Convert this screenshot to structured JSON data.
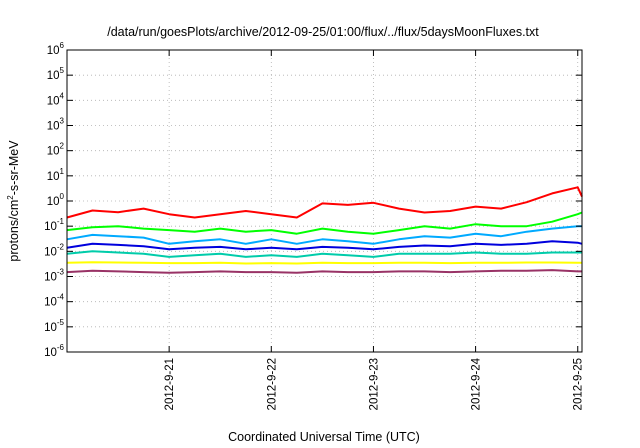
{
  "chart_data": {
    "type": "line",
    "title": "/data/run/goesPlots/archive/2012-09-25/01:00/flux/../flux/5daysMoonFluxes.txt",
    "xlabel": "Coordinated Universal Time (UTC)",
    "ylabel": {
      "base": "protons/cm",
      "sup": "2",
      "rest": "-s-sr-MeV"
    },
    "yscale": "log",
    "ylim": [
      1e-06,
      1000000.0
    ],
    "xlim": [
      "2012-09-20T00:00",
      "2012-09-25T01:00"
    ],
    "grid": true,
    "legend": "none",
    "xticks": [
      {
        "x": "2012-09-21T00:00",
        "label": "2012-9-21"
      },
      {
        "x": "2012-09-22T00:00",
        "label": "2012-9-22"
      },
      {
        "x": "2012-09-23T00:00",
        "label": "2012-9-23"
      },
      {
        "x": "2012-09-24T00:00",
        "label": "2012-9-24"
      },
      {
        "x": "2012-09-25T00:00",
        "label": "2012-9-25"
      }
    ],
    "yticks": [
      {
        "y": 1e-06,
        "base": "10",
        "exp": "-6"
      },
      {
        "y": 1e-05,
        "base": "10",
        "exp": "-5"
      },
      {
        "y": 0.0001,
        "base": "10",
        "exp": "-4"
      },
      {
        "y": 0.001,
        "base": "10",
        "exp": "-3"
      },
      {
        "y": 0.01,
        "base": "10",
        "exp": "-2"
      },
      {
        "y": 0.1,
        "base": "10",
        "exp": "-1"
      },
      {
        "y": 1,
        "base": "10",
        "exp": "0"
      },
      {
        "y": 10,
        "base": "10",
        "exp": "1"
      },
      {
        "y": 100,
        "base": "10",
        "exp": "2"
      },
      {
        "y": 1000,
        "base": "10",
        "exp": "3"
      },
      {
        "y": 10000,
        "base": "10",
        "exp": "4"
      },
      {
        "y": 100000,
        "base": "10",
        "exp": "5"
      },
      {
        "y": 1000000,
        "base": "10",
        "exp": "6"
      }
    ],
    "series": [
      {
        "color": "#ff0000",
        "x": [
          "2012-09-20T00:00",
          "2012-09-20T06:00",
          "2012-09-20T12:00",
          "2012-09-20T18:00",
          "2012-09-21T00:00",
          "2012-09-21T06:00",
          "2012-09-21T12:00",
          "2012-09-21T18:00",
          "2012-09-22T00:00",
          "2012-09-22T06:00",
          "2012-09-22T12:00",
          "2012-09-22T18:00",
          "2012-09-23T00:00",
          "2012-09-23T06:00",
          "2012-09-23T12:00",
          "2012-09-23T18:00",
          "2012-09-24T00:00",
          "2012-09-24T06:00",
          "2012-09-24T12:00",
          "2012-09-24T18:00",
          "2012-09-25T00:00",
          "2012-09-25T01:00"
        ],
        "y": [
          0.22,
          0.42,
          0.36,
          0.5,
          0.3,
          0.22,
          0.3,
          0.4,
          0.3,
          0.22,
          0.8,
          0.7,
          0.85,
          0.5,
          0.35,
          0.4,
          0.6,
          0.5,
          0.9,
          2.0,
          3.5,
          1.5
        ]
      },
      {
        "color": "#00ff00",
        "x": [
          "2012-09-20T00:00",
          "2012-09-20T06:00",
          "2012-09-20T12:00",
          "2012-09-20T18:00",
          "2012-09-21T00:00",
          "2012-09-21T06:00",
          "2012-09-21T12:00",
          "2012-09-21T18:00",
          "2012-09-22T00:00",
          "2012-09-22T06:00",
          "2012-09-22T12:00",
          "2012-09-22T18:00",
          "2012-09-23T00:00",
          "2012-09-23T06:00",
          "2012-09-23T12:00",
          "2012-09-23T18:00",
          "2012-09-24T00:00",
          "2012-09-24T06:00",
          "2012-09-24T12:00",
          "2012-09-24T18:00",
          "2012-09-25T00:00",
          "2012-09-25T01:00"
        ],
        "y": [
          0.07,
          0.09,
          0.1,
          0.08,
          0.07,
          0.06,
          0.08,
          0.06,
          0.07,
          0.05,
          0.08,
          0.06,
          0.05,
          0.07,
          0.1,
          0.08,
          0.12,
          0.1,
          0.1,
          0.15,
          0.3,
          0.35
        ]
      },
      {
        "color": "#00aaff",
        "x": [
          "2012-09-20T00:00",
          "2012-09-20T06:00",
          "2012-09-20T12:00",
          "2012-09-20T18:00",
          "2012-09-21T00:00",
          "2012-09-21T06:00",
          "2012-09-21T12:00",
          "2012-09-21T18:00",
          "2012-09-22T00:00",
          "2012-09-22T06:00",
          "2012-09-22T12:00",
          "2012-09-22T18:00",
          "2012-09-23T00:00",
          "2012-09-23T06:00",
          "2012-09-23T12:00",
          "2012-09-23T18:00",
          "2012-09-24T00:00",
          "2012-09-24T06:00",
          "2012-09-24T12:00",
          "2012-09-24T18:00",
          "2012-09-25T00:00",
          "2012-09-25T01:00"
        ],
        "y": [
          0.03,
          0.045,
          0.04,
          0.035,
          0.02,
          0.025,
          0.03,
          0.02,
          0.03,
          0.02,
          0.03,
          0.025,
          0.02,
          0.03,
          0.04,
          0.035,
          0.05,
          0.04,
          0.06,
          0.08,
          0.1,
          0.1
        ]
      },
      {
        "color": "#0000dd",
        "x": [
          "2012-09-20T00:00",
          "2012-09-20T06:00",
          "2012-09-20T12:00",
          "2012-09-20T18:00",
          "2012-09-21T00:00",
          "2012-09-21T06:00",
          "2012-09-21T12:00",
          "2012-09-21T18:00",
          "2012-09-22T00:00",
          "2012-09-22T06:00",
          "2012-09-22T12:00",
          "2012-09-22T18:00",
          "2012-09-23T00:00",
          "2012-09-23T06:00",
          "2012-09-23T12:00",
          "2012-09-23T18:00",
          "2012-09-24T00:00",
          "2012-09-24T06:00",
          "2012-09-24T12:00",
          "2012-09-24T18:00",
          "2012-09-25T00:00",
          "2012-09-25T01:00"
        ],
        "y": [
          0.014,
          0.02,
          0.018,
          0.016,
          0.012,
          0.014,
          0.015,
          0.012,
          0.014,
          0.012,
          0.015,
          0.014,
          0.012,
          0.015,
          0.017,
          0.016,
          0.02,
          0.018,
          0.02,
          0.025,
          0.022,
          0.02
        ]
      },
      {
        "color": "#00ccaa",
        "x": [
          "2012-09-20T00:00",
          "2012-09-20T06:00",
          "2012-09-20T12:00",
          "2012-09-20T18:00",
          "2012-09-21T00:00",
          "2012-09-21T06:00",
          "2012-09-21T12:00",
          "2012-09-21T18:00",
          "2012-09-22T00:00",
          "2012-09-22T06:00",
          "2012-09-22T12:00",
          "2012-09-22T18:00",
          "2012-09-23T00:00",
          "2012-09-23T06:00",
          "2012-09-23T12:00",
          "2012-09-23T18:00",
          "2012-09-24T00:00",
          "2012-09-24T06:00",
          "2012-09-24T12:00",
          "2012-09-24T18:00",
          "2012-09-25T00:00",
          "2012-09-25T01:00"
        ],
        "y": [
          0.008,
          0.01,
          0.009,
          0.008,
          0.006,
          0.007,
          0.008,
          0.006,
          0.007,
          0.006,
          0.008,
          0.007,
          0.006,
          0.008,
          0.008,
          0.008,
          0.009,
          0.008,
          0.008,
          0.009,
          0.009,
          0.009
        ]
      },
      {
        "color": "#ffff00",
        "x": [
          "2012-09-20T00:00",
          "2012-09-20T06:00",
          "2012-09-20T12:00",
          "2012-09-20T18:00",
          "2012-09-21T00:00",
          "2012-09-21T06:00",
          "2012-09-21T12:00",
          "2012-09-21T18:00",
          "2012-09-22T00:00",
          "2012-09-22T06:00",
          "2012-09-22T12:00",
          "2012-09-22T18:00",
          "2012-09-23T00:00",
          "2012-09-23T06:00",
          "2012-09-23T12:00",
          "2012-09-23T18:00",
          "2012-09-24T00:00",
          "2012-09-24T06:00",
          "2012-09-24T12:00",
          "2012-09-24T18:00",
          "2012-09-25T00:00",
          "2012-09-25T01:00"
        ],
        "y": [
          0.0035,
          0.0037,
          0.0036,
          0.0035,
          0.0034,
          0.0034,
          0.0035,
          0.0033,
          0.0034,
          0.0033,
          0.0035,
          0.0034,
          0.0034,
          0.0035,
          0.0035,
          0.0034,
          0.0035,
          0.0035,
          0.0036,
          0.0036,
          0.0035,
          0.0035
        ]
      },
      {
        "color": "#993366",
        "x": [
          "2012-09-20T00:00",
          "2012-09-20T06:00",
          "2012-09-20T12:00",
          "2012-09-20T18:00",
          "2012-09-21T00:00",
          "2012-09-21T06:00",
          "2012-09-21T12:00",
          "2012-09-21T18:00",
          "2012-09-22T00:00",
          "2012-09-22T06:00",
          "2012-09-22T12:00",
          "2012-09-22T18:00",
          "2012-09-23T00:00",
          "2012-09-23T06:00",
          "2012-09-23T12:00",
          "2012-09-23T18:00",
          "2012-09-24T00:00",
          "2012-09-24T06:00",
          "2012-09-24T12:00",
          "2012-09-24T18:00",
          "2012-09-25T00:00",
          "2012-09-25T01:00"
        ],
        "y": [
          0.0015,
          0.0017,
          0.0016,
          0.0015,
          0.0014,
          0.0015,
          0.0016,
          0.0015,
          0.0015,
          0.0014,
          0.0016,
          0.0015,
          0.0015,
          0.0016,
          0.0016,
          0.0015,
          0.0016,
          0.0017,
          0.0017,
          0.0018,
          0.0016,
          0.0016
        ]
      }
    ]
  }
}
